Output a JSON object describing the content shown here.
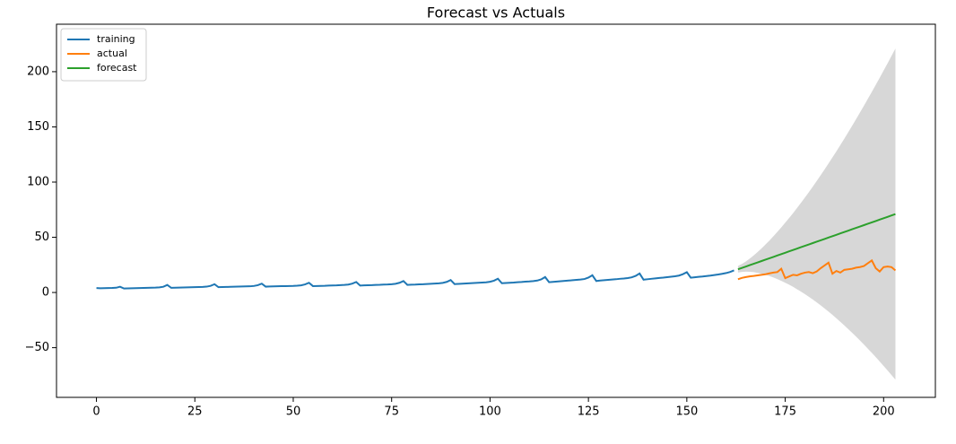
{
  "chart_data": {
    "type": "line",
    "title": "Forecast vs Actuals",
    "xlim": [
      -10.15,
      213.15
    ],
    "ylim": [
      -95,
      243
    ],
    "xticks": [
      0,
      25,
      50,
      75,
      100,
      125,
      150,
      175,
      200
    ],
    "yticks": [
      {
        "value": -50,
        "label": "−50"
      },
      0,
      50,
      100,
      150,
      200
    ],
    "grid": false,
    "legend": "upper-left",
    "series": [
      {
        "name": "training",
        "color": "#1f77b4",
        "x": [
          0,
          1,
          2,
          3,
          4,
          5,
          6,
          7,
          8,
          9,
          10,
          11,
          12,
          13,
          14,
          15,
          16,
          17,
          18,
          19,
          20,
          21,
          22,
          23,
          24,
          25,
          26,
          27,
          28,
          29,
          30,
          31,
          32,
          33,
          34,
          35,
          36,
          37,
          38,
          39,
          40,
          41,
          42,
          43,
          44,
          45,
          46,
          47,
          48,
          49,
          50,
          51,
          52,
          53,
          54,
          55,
          56,
          57,
          58,
          59,
          60,
          61,
          62,
          63,
          64,
          65,
          66,
          67,
          68,
          69,
          70,
          71,
          72,
          73,
          74,
          75,
          76,
          77,
          78,
          79,
          80,
          81,
          82,
          83,
          84,
          85,
          86,
          87,
          88,
          89,
          90,
          91,
          92,
          93,
          94,
          95,
          96,
          97,
          98,
          99,
          100,
          101,
          102,
          103,
          104,
          105,
          106,
          107,
          108,
          109,
          110,
          111,
          112,
          113,
          114,
          115,
          116,
          117,
          118,
          119,
          120,
          121,
          122,
          123,
          124,
          125,
          126,
          127,
          128,
          129,
          130,
          131,
          132,
          133,
          134,
          135,
          136,
          137,
          138,
          139,
          140,
          141,
          142,
          143,
          144,
          145,
          146,
          147,
          148,
          149,
          150,
          151,
          152,
          153,
          154,
          155,
          156,
          157,
          158,
          159,
          160,
          161,
          162
        ],
        "values": [
          4.0,
          3.8,
          3.9,
          4.0,
          4.1,
          4.3,
          5.2,
          3.6,
          3.7,
          3.8,
          3.9,
          4.0,
          4.1,
          4.2,
          4.3,
          4.4,
          4.6,
          5.2,
          6.8,
          4.2,
          4.3,
          4.4,
          4.5,
          4.6,
          4.7,
          4.8,
          4.9,
          5.0,
          5.3,
          6.0,
          7.5,
          4.8,
          4.9,
          5.0,
          5.1,
          5.2,
          5.3,
          5.4,
          5.5,
          5.6,
          5.9,
          6.6,
          8.0,
          5.3,
          5.4,
          5.5,
          5.6,
          5.7,
          5.8,
          5.9,
          6.0,
          6.2,
          6.5,
          7.3,
          8.8,
          5.8,
          5.9,
          6.0,
          6.1,
          6.3,
          6.4,
          6.5,
          6.7,
          6.9,
          7.2,
          8.0,
          9.5,
          6.3,
          6.5,
          6.6,
          6.7,
          6.9,
          7.0,
          7.2,
          7.3,
          7.5,
          7.9,
          8.8,
          10.4,
          6.9,
          7.1,
          7.2,
          7.4,
          7.5,
          7.7,
          7.9,
          8.1,
          8.3,
          8.7,
          9.6,
          11.3,
          7.6,
          7.8,
          8.0,
          8.2,
          8.4,
          8.6,
          8.8,
          9.0,
          9.2,
          9.7,
          10.7,
          12.5,
          8.4,
          8.6,
          8.8,
          9.0,
          9.3,
          9.5,
          9.8,
          10.0,
          10.3,
          10.8,
          11.9,
          14.0,
          9.3,
          9.6,
          9.9,
          10.2,
          10.5,
          10.8,
          11.1,
          11.4,
          11.7,
          12.2,
          13.5,
          15.6,
          10.4,
          10.8,
          11.1,
          11.4,
          11.7,
          12.0,
          12.4,
          12.7,
          13.1,
          13.7,
          15.0,
          17.2,
          11.6,
          12.0,
          12.4,
          12.8,
          13.2,
          13.5,
          13.9,
          14.3,
          14.7,
          15.3,
          16.6,
          18.4,
          13.4,
          13.8,
          14.2,
          14.5,
          14.9,
          15.3,
          15.8,
          16.3,
          16.9,
          17.6,
          18.6,
          20.0
        ]
      },
      {
        "name": "actual",
        "color": "#ff7f0e",
        "x": [
          163,
          164,
          165,
          166,
          167,
          168,
          169,
          170,
          171,
          172,
          173,
          174,
          175,
          176,
          177,
          178,
          179,
          180,
          181,
          182,
          183,
          184,
          185,
          186,
          187,
          188,
          189,
          190,
          191,
          192,
          193,
          194,
          195,
          196,
          197,
          198,
          199,
          200,
          201,
          202,
          203
        ],
        "values": [
          12.0,
          13.2,
          14.0,
          14.6,
          15.0,
          15.5,
          16.0,
          16.5,
          17.3,
          18.0,
          18.5,
          21.5,
          13.0,
          14.5,
          16.0,
          15.5,
          17.0,
          18.0,
          18.5,
          17.5,
          19.0,
          22.0,
          24.5,
          27.0,
          17.0,
          19.5,
          18.0,
          20.5,
          21.0,
          21.5,
          22.5,
          23.0,
          24.0,
          26.5,
          29.0,
          22.0,
          19.0,
          23.0,
          23.5,
          23.0,
          20.0
        ]
      },
      {
        "name": "forecast",
        "color": "#2ca02c",
        "band_color": "#d3d3d3",
        "x": [
          163,
          164,
          165,
          166,
          167,
          168,
          169,
          170,
          171,
          172,
          173,
          174,
          175,
          176,
          177,
          178,
          179,
          180,
          181,
          182,
          183,
          184,
          185,
          186,
          187,
          188,
          189,
          190,
          191,
          192,
          193,
          194,
          195,
          196,
          197,
          198,
          199,
          200,
          201,
          202,
          203
        ],
        "values": [
          21,
          22.25,
          23.5,
          24.75,
          26,
          27.25,
          28.5,
          29.75,
          31,
          32.25,
          33.5,
          34.75,
          36,
          37.25,
          38.5,
          39.75,
          41,
          42.25,
          43.5,
          44.75,
          46,
          47.25,
          48.5,
          49.75,
          51,
          52.25,
          53.5,
          54.75,
          56,
          57.25,
          58.5,
          59.75,
          61,
          62.25,
          63.5,
          64.75,
          66,
          67.25,
          68.5,
          69.75,
          71
        ],
        "lower": [
          18,
          18.65,
          18.9,
          18.75,
          18.4,
          17.75,
          17,
          15.95,
          14.9,
          13.55,
          12.1,
          10.55,
          8.8,
          7.05,
          5.1,
          2.95,
          0.8,
          -1.45,
          -3.9,
          -6.35,
          -9,
          -11.65,
          -14.5,
          -17.35,
          -20.3,
          -23.35,
          -26.5,
          -29.75,
          -33.1,
          -36.45,
          -40,
          -43.55,
          -47.2,
          -50.95,
          -54.7,
          -58.55,
          -62.5,
          -66.55,
          -70.6,
          -74.75,
          -79
        ],
        "upper": [
          24,
          25.85,
          28.1,
          30.75,
          33.6,
          36.75,
          40,
          43.55,
          47.1,
          50.95,
          54.9,
          58.95,
          63.2,
          67.45,
          71.9,
          76.55,
          81.2,
          85.95,
          90.9,
          95.85,
          101,
          106.15,
          111.5,
          116.85,
          122.3,
          127.85,
          133.5,
          139.25,
          145.1,
          150.95,
          157,
          163.05,
          169.2,
          175.45,
          181.7,
          188.05,
          194.5,
          201.05,
          207.6,
          214.25,
          221
        ]
      }
    ]
  }
}
